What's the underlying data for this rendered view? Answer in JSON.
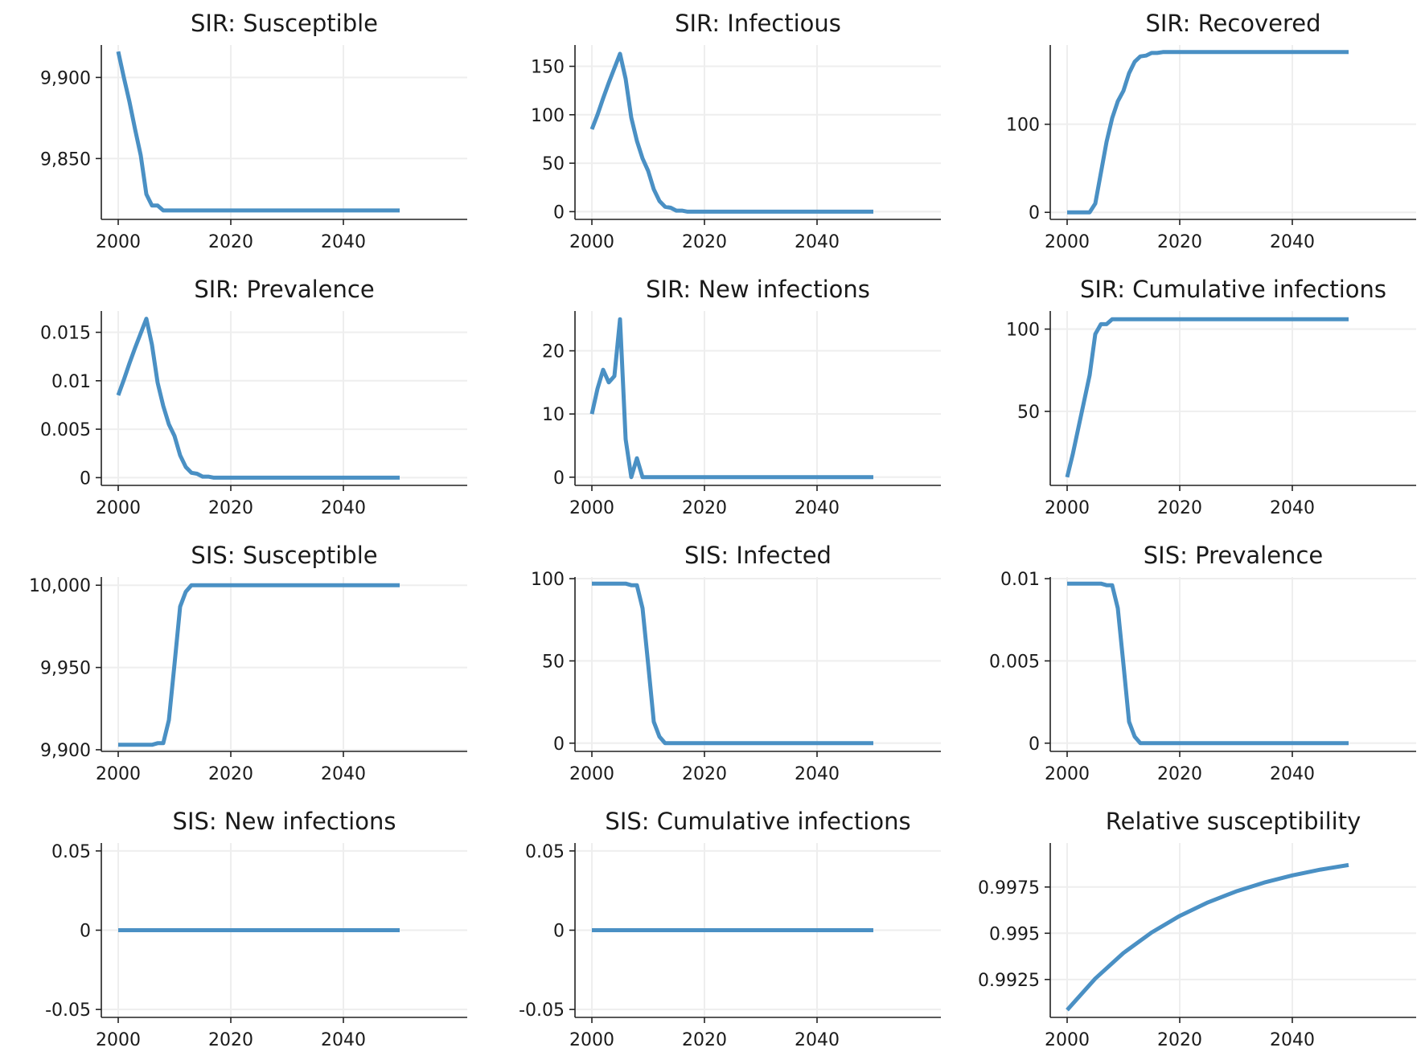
{
  "figure": {
    "line_color": "#4a90c4",
    "grid_color": "#eeeeee",
    "axis_color": "#222222"
  },
  "chart_data": [
    {
      "type": "line",
      "title": "SIR: Susceptible",
      "xlim": [
        1997,
        2062
      ],
      "ylim": [
        9812.5,
        9920
      ],
      "xticks": [
        2000,
        2020,
        2040
      ],
      "xticklabels": [
        "2000",
        "2020",
        "2040"
      ],
      "yticks": [
        9850,
        9900
      ],
      "yticklabels": [
        "9,850",
        "9,900"
      ],
      "series": [
        {
          "x": [
            2000,
            2001,
            2002,
            2003,
            2004,
            2005,
            2006,
            2007,
            2008,
            2010,
            2050
          ],
          "y": [
            9916,
            9900,
            9885,
            9868,
            9852,
            9828,
            9821,
            9821,
            9818,
            9818,
            9818
          ]
        }
      ]
    },
    {
      "type": "line",
      "title": "SIR: Infectious",
      "xlim": [
        1997,
        2062
      ],
      "ylim": [
        -8,
        172
      ],
      "xticks": [
        2000,
        2020,
        2040
      ],
      "xticklabels": [
        "2000",
        "2020",
        "2040"
      ],
      "yticks": [
        0,
        50,
        100,
        150
      ],
      "yticklabels": [
        "0",
        "50",
        "100",
        "150"
      ],
      "series": [
        {
          "x": [
            2000,
            2001,
            2002,
            2003,
            2004,
            2005,
            2006,
            2007,
            2008,
            2009,
            2010,
            2011,
            2012,
            2013,
            2014,
            2015,
            2016,
            2017,
            2050
          ],
          "y": [
            85,
            100,
            117,
            133,
            148,
            163,
            137,
            97,
            73,
            55,
            42,
            23,
            11,
            5,
            4,
            1,
            1,
            0,
            0
          ]
        }
      ]
    },
    {
      "type": "line",
      "title": "SIR: Recovered",
      "xlim": [
        1997,
        2062
      ],
      "ylim": [
        -8,
        190
      ],
      "xticks": [
        2000,
        2020,
        2040
      ],
      "xticklabels": [
        "2000",
        "2020",
        "2040"
      ],
      "yticks": [
        0,
        100
      ],
      "yticklabels": [
        "0",
        "100"
      ],
      "series": [
        {
          "x": [
            2000,
            2001,
            2002,
            2003,
            2004,
            2005,
            2006,
            2007,
            2008,
            2009,
            2010,
            2011,
            2012,
            2013,
            2014,
            2015,
            2016,
            2017,
            2050
          ],
          "y": [
            0,
            0,
            0,
            0,
            0,
            10,
            45,
            80,
            107,
            126,
            138,
            158,
            171,
            177,
            178,
            181,
            181,
            182,
            182
          ]
        }
      ]
    },
    {
      "type": "line",
      "title": "SIR: Prevalence",
      "xlim": [
        1997,
        2062
      ],
      "ylim": [
        -0.0008,
        0.0172
      ],
      "xticks": [
        2000,
        2020,
        2040
      ],
      "xticklabels": [
        "2000",
        "2020",
        "2040"
      ],
      "yticks": [
        0,
        0.005,
        0.01,
        0.015
      ],
      "yticklabels": [
        "0",
        "0.005",
        "0.01",
        "0.015"
      ],
      "series": [
        {
          "x": [
            2000,
            2001,
            2002,
            2003,
            2004,
            2005,
            2006,
            2007,
            2008,
            2009,
            2010,
            2011,
            2012,
            2013,
            2014,
            2015,
            2016,
            2017,
            2050
          ],
          "y": [
            0.0085,
            0.0101,
            0.0118,
            0.0134,
            0.0149,
            0.0164,
            0.0137,
            0.0098,
            0.0074,
            0.0055,
            0.0043,
            0.0023,
            0.0011,
            0.0005,
            0.0004,
            0.0001,
            0.0001,
            0,
            0
          ]
        }
      ]
    },
    {
      "type": "line",
      "title": "SIR: New infections",
      "xlim": [
        1997,
        2062
      ],
      "ylim": [
        -1.3,
        26.3
      ],
      "xticks": [
        2000,
        2020,
        2040
      ],
      "xticklabels": [
        "2000",
        "2020",
        "2040"
      ],
      "yticks": [
        0,
        10,
        20
      ],
      "yticklabels": [
        "0",
        "10",
        "20"
      ],
      "series": [
        {
          "x": [
            2000,
            2001,
            2002,
            2003,
            2004,
            2005,
            2006,
            2007,
            2008,
            2009,
            2050
          ],
          "y": [
            10,
            14,
            17,
            15,
            16,
            25,
            6,
            0,
            3,
            0,
            0
          ]
        }
      ]
    },
    {
      "type": "line",
      "title": "SIR: Cumulative infections",
      "xlim": [
        1997,
        2062
      ],
      "ylim": [
        5,
        111
      ],
      "xticks": [
        2000,
        2020,
        2040
      ],
      "xticklabels": [
        "2000",
        "2020",
        "2040"
      ],
      "yticks": [
        50,
        100
      ],
      "yticklabels": [
        "50",
        "100"
      ],
      "series": [
        {
          "x": [
            2000,
            2001,
            2002,
            2003,
            2004,
            2005,
            2006,
            2007,
            2008,
            2009,
            2050
          ],
          "y": [
            10,
            24,
            40,
            56,
            72,
            97,
            103,
            103,
            106,
            106,
            106
          ]
        }
      ]
    },
    {
      "type": "line",
      "title": "SIS: Susceptible",
      "xlim": [
        1997,
        2062
      ],
      "ylim": [
        9899,
        10005
      ],
      "xticks": [
        2000,
        2020,
        2040
      ],
      "xticklabels": [
        "2000",
        "2020",
        "2040"
      ],
      "yticks": [
        9900,
        9950,
        10000
      ],
      "yticklabels": [
        "9,900",
        "9,950",
        "10,000"
      ],
      "series": [
        {
          "x": [
            2000,
            2001,
            2002,
            2003,
            2004,
            2005,
            2006,
            2007,
            2008,
            2009,
            2010,
            2011,
            2012,
            2013,
            2014,
            2050
          ],
          "y": [
            9903,
            9903,
            9903,
            9903,
            9903,
            9903,
            9903,
            9904,
            9904,
            9918,
            9952,
            9987,
            9996,
            10000,
            10000,
            10000
          ]
        }
      ]
    },
    {
      "type": "line",
      "title": "SIS: Infected",
      "xlim": [
        1997,
        2062
      ],
      "ylim": [
        -5,
        101
      ],
      "xticks": [
        2000,
        2020,
        2040
      ],
      "xticklabels": [
        "2000",
        "2020",
        "2040"
      ],
      "yticks": [
        0,
        50,
        100
      ],
      "yticklabels": [
        "0",
        "50",
        "100"
      ],
      "series": [
        {
          "x": [
            2000,
            2001,
            2002,
            2003,
            2004,
            2005,
            2006,
            2007,
            2008,
            2009,
            2010,
            2011,
            2012,
            2013,
            2014,
            2050
          ],
          "y": [
            97,
            97,
            97,
            97,
            97,
            97,
            97,
            96,
            96,
            82,
            48,
            13,
            4,
            0,
            0,
            0
          ]
        }
      ]
    },
    {
      "type": "line",
      "title": "SIS: Prevalence",
      "xlim": [
        1997,
        2062
      ],
      "ylim": [
        -0.0005,
        0.0101
      ],
      "xticks": [
        2000,
        2020,
        2040
      ],
      "xticklabels": [
        "2000",
        "2020",
        "2040"
      ],
      "yticks": [
        0,
        0.005,
        0.01
      ],
      "yticklabels": [
        "0",
        "0.005",
        "0.01"
      ],
      "series": [
        {
          "x": [
            2000,
            2001,
            2002,
            2003,
            2004,
            2005,
            2006,
            2007,
            2008,
            2009,
            2010,
            2011,
            2012,
            2013,
            2014,
            2050
          ],
          "y": [
            0.0097,
            0.0097,
            0.0097,
            0.0097,
            0.0097,
            0.0097,
            0.0097,
            0.0096,
            0.0096,
            0.0082,
            0.0048,
            0.0013,
            0.0004,
            0,
            0,
            0
          ]
        }
      ]
    },
    {
      "type": "line",
      "title": "SIS: New infections",
      "xlim": [
        1997,
        2062
      ],
      "ylim": [
        -0.055,
        0.055
      ],
      "xticks": [
        2000,
        2020,
        2040
      ],
      "xticklabels": [
        "2000",
        "2020",
        "2040"
      ],
      "yticks": [
        -0.05,
        0,
        0.05
      ],
      "yticklabels": [
        "-0.05",
        "0",
        "0.05"
      ],
      "series": [
        {
          "x": [
            2000,
            2050
          ],
          "y": [
            0,
            0
          ]
        }
      ]
    },
    {
      "type": "line",
      "title": "SIS: Cumulative infections",
      "xlim": [
        1997,
        2062
      ],
      "ylim": [
        -0.055,
        0.055
      ],
      "xticks": [
        2000,
        2020,
        2040
      ],
      "xticklabels": [
        "2000",
        "2020",
        "2040"
      ],
      "yticks": [
        -0.05,
        0,
        0.05
      ],
      "yticklabels": [
        "-0.05",
        "0",
        "0.05"
      ],
      "series": [
        {
          "x": [
            2000,
            2050
          ],
          "y": [
            0,
            0
          ]
        }
      ]
    },
    {
      "type": "line",
      "title": "Relative susceptibility",
      "xlim": [
        1997,
        2062
      ],
      "ylim": [
        0.99045,
        0.99988
      ],
      "xticks": [
        2000,
        2020,
        2040
      ],
      "xticklabels": [
        "2000",
        "2020",
        "2040"
      ],
      "yticks": [
        0.9925,
        0.995,
        0.9975
      ],
      "yticklabels": [
        "0.9925",
        "0.995",
        "0.9975"
      ],
      "series": [
        {
          "x": [
            2000,
            2005,
            2010,
            2015,
            2020,
            2025,
            2030,
            2035,
            2040,
            2045,
            2050
          ],
          "y": [
            0.99085,
            0.99255,
            0.99393,
            0.99504,
            0.99594,
            0.99667,
            0.99726,
            0.99774,
            0.99813,
            0.99844,
            0.99869
          ]
        }
      ]
    }
  ]
}
